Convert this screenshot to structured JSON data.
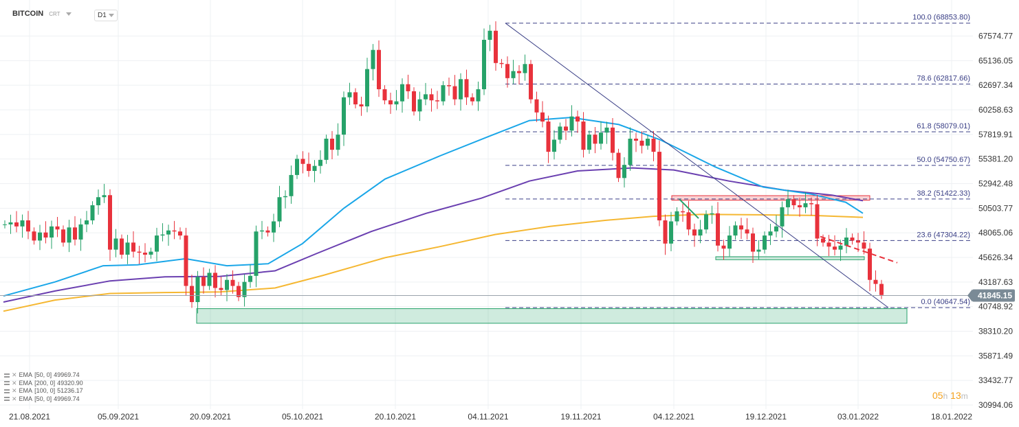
{
  "header": {
    "symbol": "BITCOIN",
    "type": "CRT",
    "timeframe": "D1"
  },
  "countdown": {
    "hours": "05",
    "hours_unit": "h",
    "minutes": "13",
    "minutes_unit": "m"
  },
  "price_scale": {
    "ticks": [
      "67574.77",
      "65136.05",
      "62697.34",
      "60258.63",
      "57819.91",
      "55381.20",
      "52942.48",
      "50503.77",
      "48065.06",
      "45626.34",
      "43187.63",
      "40748.92",
      "38310.20",
      "35871.49",
      "33432.77",
      "30994.06"
    ],
    "current": "41845.15",
    "current_value": 41845.15,
    "current_color": "#7a8a96"
  },
  "time_scale": {
    "ticks": [
      "21.08.2021",
      "05.09.2021",
      "20.09.2021",
      "05.10.2021",
      "20.10.2021",
      "04.11.2021",
      "19.11.2021",
      "04.12.2021",
      "19.12.2021",
      "03.01.2022",
      "18.01.2022"
    ]
  },
  "indicators": [
    {
      "label": "EMA",
      "params": "[50,  0]",
      "value": "49969.74"
    },
    {
      "label": "EMA",
      "params": "[200,  0]",
      "value": "49320.90"
    },
    {
      "label": "EMA",
      "params": "[100,  0]",
      "value": "51236.17"
    },
    {
      "label": "EMA",
      "params": "[50,  0]",
      "value": "49969.74"
    }
  ],
  "colors": {
    "up": "#26a269",
    "down": "#e8323c",
    "ema_blue": "#19a6e8",
    "ema_purple": "#6a3fb0",
    "ema_orange": "#f5b731",
    "fib": "#3a3f86"
  },
  "chart_data": {
    "type": "candlestick",
    "title": "BITCOIN",
    "timeframe": "D1",
    "ylim": [
      30994.06,
      69200
    ],
    "fibonacci": [
      {
        "label": "100.0 (68853.80)",
        "value": 68853.8
      },
      {
        "label": "78.6 (62817.66)",
        "value": 62817.66
      },
      {
        "label": "61.8 (58079.01)",
        "value": 58079.01
      },
      {
        "label": "50.0 (54750.67)",
        "value": 54750.67
      },
      {
        "label": "38.2 (51422.33)",
        "value": 51422.33
      },
      {
        "label": "23.6 (47304.22)",
        "value": 47304.22
      },
      {
        "label": "0.0 (40647.54)",
        "value": 40647.54
      }
    ],
    "zones": [
      {
        "name": "support-zone",
        "from": 39100,
        "to": 40550,
        "color": "#26a269"
      },
      {
        "name": "resistance-zone",
        "from": 51300,
        "to": 51750,
        "color": "#e8323c"
      },
      {
        "name": "mid-support-zone",
        "from": 45400,
        "to": 45700,
        "color": "#26a269"
      }
    ]
  }
}
